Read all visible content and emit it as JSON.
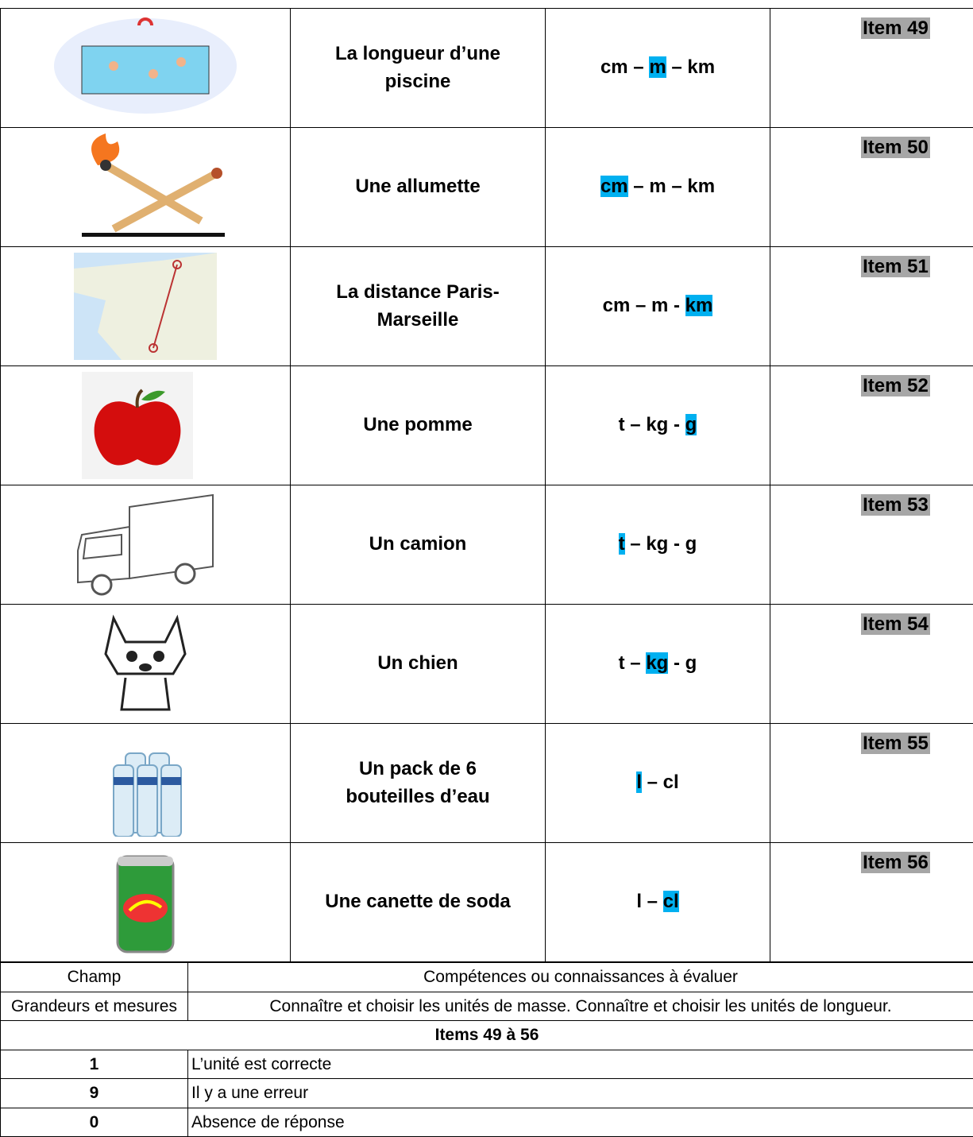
{
  "rows": [
    {
      "label": "La longueur d’une piscine",
      "units": [
        {
          "text": "cm"
        },
        {
          "text": " – "
        },
        {
          "text": "m",
          "highlight": true
        },
        {
          "text": " – "
        },
        {
          "text": "km"
        }
      ],
      "item": "Item 49"
    },
    {
      "label": "Une allumette",
      "units": [
        {
          "text": "cm",
          "highlight": true
        },
        {
          "text": " – "
        },
        {
          "text": "m"
        },
        {
          "text": " – "
        },
        {
          "text": "km"
        }
      ],
      "item": "Item 50"
    },
    {
      "label": "La distance Paris-Marseille",
      "units": [
        {
          "text": "cm"
        },
        {
          "text": " – "
        },
        {
          "text": "m"
        },
        {
          "text": " - "
        },
        {
          "text": "km",
          "highlight": true
        }
      ],
      "item": "Item 51"
    },
    {
      "label": "Une pomme",
      "units": [
        {
          "text": "t"
        },
        {
          "text": " – "
        },
        {
          "text": "kg"
        },
        {
          "text": " - "
        },
        {
          "text": "g",
          "highlight": true
        }
      ],
      "item": "Item 52"
    },
    {
      "label": "Un camion",
      "units": [
        {
          "text": "t",
          "highlight": true
        },
        {
          "text": " – "
        },
        {
          "text": "kg"
        },
        {
          "text": " - "
        },
        {
          "text": "g"
        }
      ],
      "item": "Item 53"
    },
    {
      "label": "Un chien",
      "units": [
        {
          "text": "t"
        },
        {
          "text": " – "
        },
        {
          "text": "kg",
          "highlight": true
        },
        {
          "text": " - "
        },
        {
          "text": "g"
        }
      ],
      "item": "Item 54"
    },
    {
      "label": "Un pack de 6 bouteilles d’eau",
      "units": [
        {
          "text": "l",
          "highlight": true
        },
        {
          "text": " – "
        },
        {
          "text": "cl"
        }
      ],
      "item": "Item 55"
    },
    {
      "label": "Une canette de soda",
      "units": [
        {
          "text": "l"
        },
        {
          "text": " – "
        },
        {
          "text": "cl",
          "highlight": true
        }
      ],
      "item": "Item 56"
    }
  ],
  "summary": {
    "header": [
      "Champ",
      "Compétences ou connaissances à évaluer"
    ],
    "field": "Grandeurs et mesures",
    "skills": "Connaître et choisir les unités de masse. Connaître et choisir les unités de longueur.",
    "items_title": "Items 49 à 56",
    "codes": [
      {
        "code": "1",
        "meaning": "L’unité est correcte"
      },
      {
        "code": "9",
        "meaning": "Il y a une erreur"
      },
      {
        "code": "0",
        "meaning": "Absence de réponse"
      }
    ]
  }
}
